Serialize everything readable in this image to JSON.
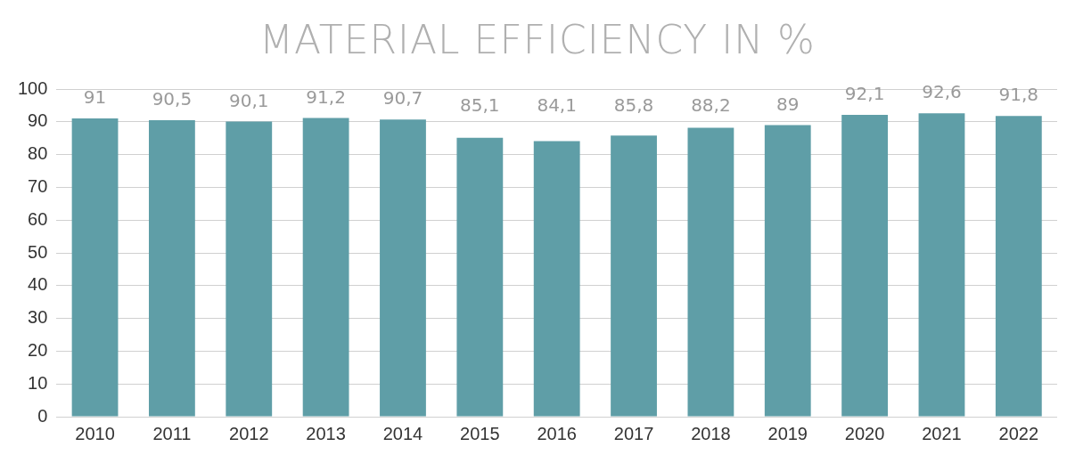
{
  "chart_data": {
    "type": "bar",
    "title": "MATERIAL EFFICIENCY IN %",
    "categories": [
      "2010",
      "2011",
      "2012",
      "2013",
      "2014",
      "2015",
      "2016",
      "2017",
      "2018",
      "2019",
      "2020",
      "2021",
      "2022"
    ],
    "values": [
      91,
      90.5,
      90.1,
      91.2,
      90.7,
      85.1,
      84.1,
      85.8,
      88.2,
      89,
      92.1,
      92.6,
      91.8
    ],
    "value_labels": [
      "91",
      "90,5",
      "90,1",
      "91,2",
      "90,7",
      "85,1",
      "84,1",
      "85,8",
      "88,2",
      "89",
      "92,1",
      "92,6",
      "91,8"
    ],
    "color": "#5f9ea7",
    "ylim": [
      0,
      100
    ],
    "yticks": [
      0,
      10,
      20,
      30,
      40,
      50,
      60,
      70,
      80,
      90,
      100
    ],
    "grid": "y",
    "legend": false
  }
}
